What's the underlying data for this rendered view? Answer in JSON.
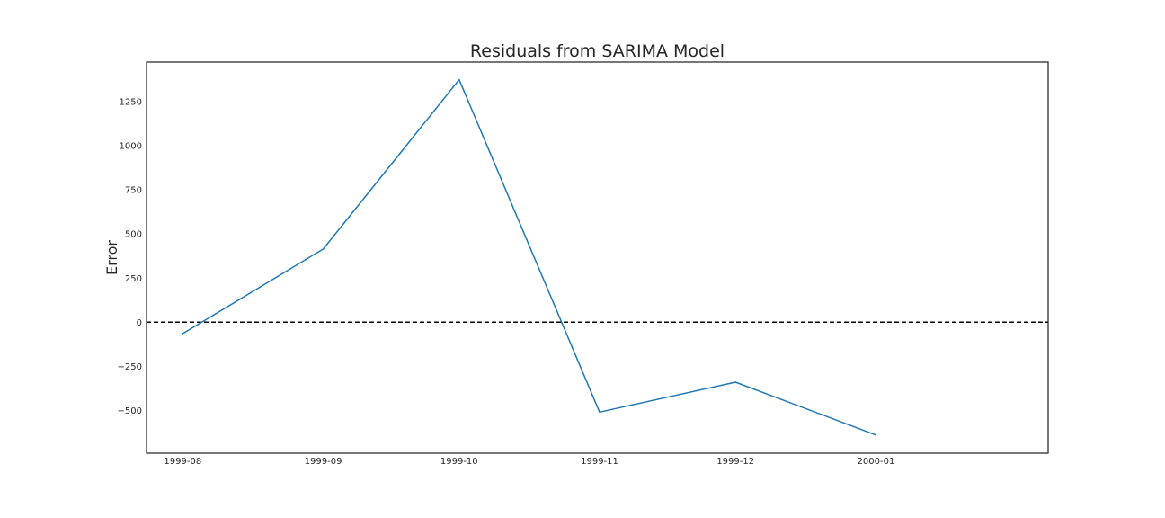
{
  "chart_data": {
    "type": "line",
    "title": "Residuals from SARIMA Model",
    "xlabel": "",
    "ylabel": "Error",
    "x": [
      "1999-08",
      "1999-09",
      "1999-10",
      "1999-11",
      "1999-12",
      "2000-01"
    ],
    "x_tick_labels": [
      "1999-08",
      "1999-09",
      "1999-10",
      "1999-11",
      "1999-12",
      "2000-01"
    ],
    "series": [
      {
        "values": [
          -65,
          415,
          1375,
          -510,
          -340,
          -640
        ],
        "color": "#1f77b4"
      }
    ],
    "y_ticks": [
      -500,
      -250,
      0,
      250,
      500,
      750,
      1000,
      1250
    ],
    "y_tick_labels": [
      "−500",
      "−250",
      "0",
      "250",
      "500",
      "750",
      1000,
      1250
    ],
    "ylim": [
      -743,
      1475
    ],
    "xlim": [
      "1999-07-24",
      "2000-02-08"
    ],
    "reference_line": {
      "y": 0,
      "style": "dashed",
      "color": "#000000"
    },
    "grid": false,
    "legend": "none"
  }
}
